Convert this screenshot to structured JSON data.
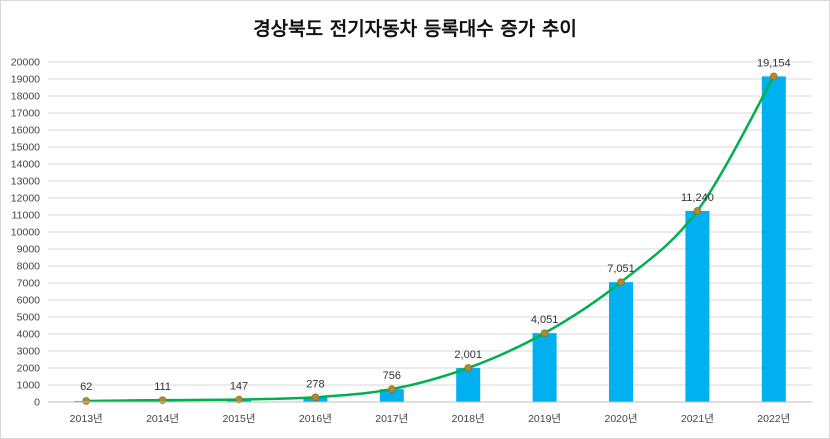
{
  "chart_data": {
    "type": "bar",
    "title": "경상북도 전기자동차 등록대수 증가 추이",
    "categories": [
      "2013년",
      "2014년",
      "2015년",
      "2016년",
      "2017년",
      "2018년",
      "2019년",
      "2020년",
      "2021년",
      "2022년"
    ],
    "values": [
      62,
      111,
      147,
      278,
      756,
      2001,
      4051,
      7051,
      11240,
      19154
    ],
    "data_labels": [
      "62",
      "111",
      "147",
      "278",
      "756",
      "2,001",
      "4,051",
      "7,051",
      "11,240",
      "19,154"
    ],
    "ylim": [
      0,
      20000
    ],
    "yticks": [
      0,
      1000,
      2000,
      3000,
      4000,
      5000,
      6000,
      7000,
      8000,
      9000,
      10000,
      11000,
      12000,
      13000,
      14000,
      15000,
      16000,
      17000,
      18000,
      19000,
      20000
    ],
    "grid": true,
    "trendline": true,
    "colors": {
      "bar": "#00B0F0",
      "trend": "#00B050",
      "marker": "#B08A2E",
      "grid": "#D9D9D9"
    }
  }
}
